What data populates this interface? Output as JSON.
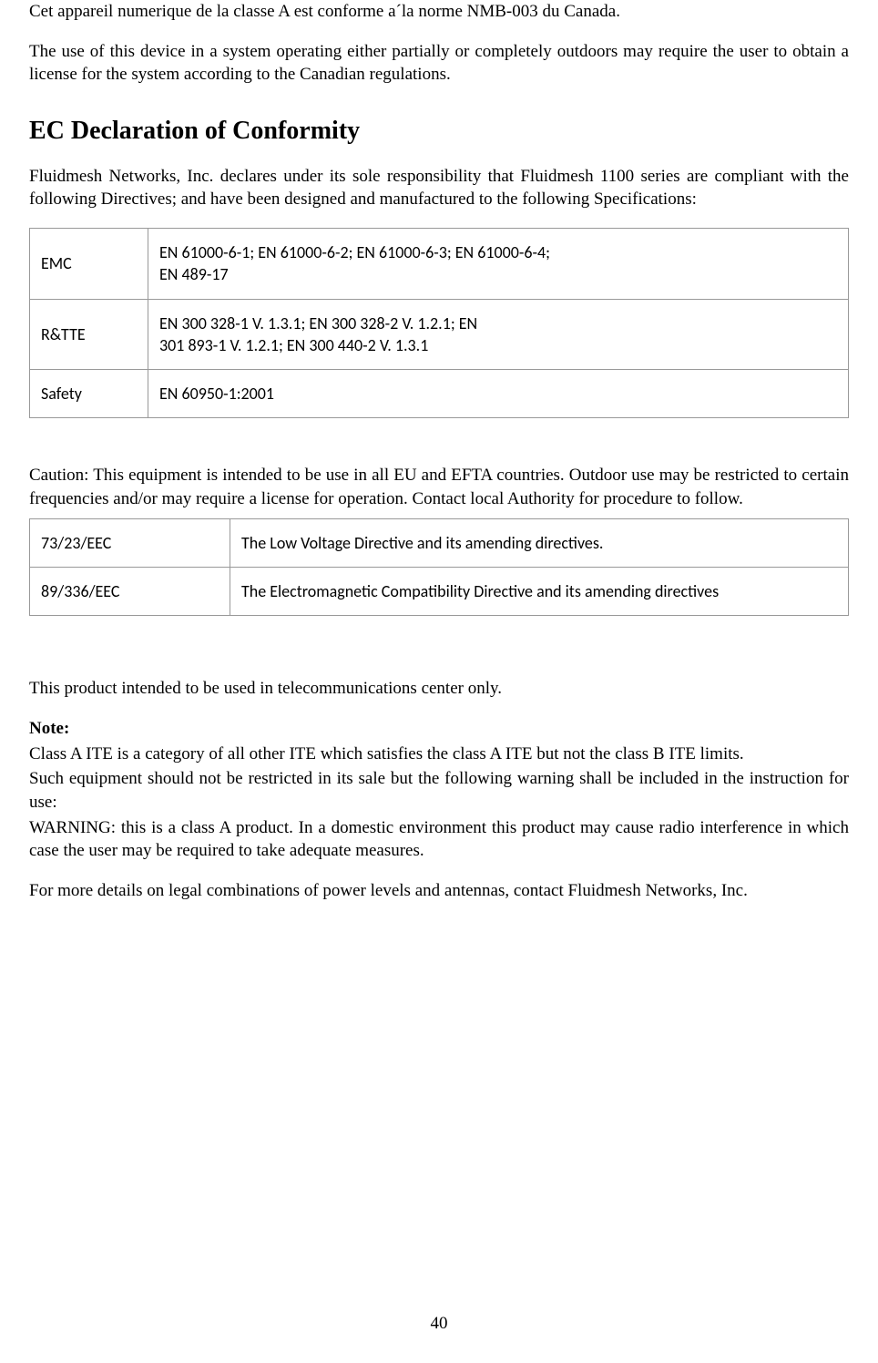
{
  "intro": {
    "line1": "Cet appareil numerique de la classe A est conforme a´la norme NMB-003 du Canada.",
    "line2": "The use of this device in a system operating either partially or completely outdoors may require the user to obtain a license for the system according to the Canadian regulations."
  },
  "ec_section": {
    "title": "EC Declaration of Conformity",
    "intro": "Fluidmesh  Networks,  Inc.  declares  under  its  sole  responsibility  that Fluidmesh  1100  series  are compliant   with  the  following  Directives;  and  have   been   designed   and   manufactured   to   the following Specifications:"
  },
  "table1": {
    "rows": [
      {
        "label": "EMC",
        "value": "EN 61000-6-1;  EN 61000-6-2;  EN 61000-6-3; EN 61000-6-4;\nEN 489-17"
      },
      {
        "label": "R&TTE",
        "value": "EN 300 328-1 V. 1.3.1; EN 300 328-2 V. 1.2.1; EN\n301 893-1 V. 1.2.1; EN 300 440-2 V. 1.3.1"
      },
      {
        "label": "Safety",
        "value": "EN 60950-1:2001"
      }
    ]
  },
  "caution": "Caution:  This equipment is intended to be use in all EU and  EFTA  countries. Outdoor  use  may  be  restricted   to   certain  frequencies   and/or   may   require   a   license   for   operation.  Contact   local Authority for procedure to follow.",
  "table2": {
    "rows": [
      {
        "label": "73/23/EEC",
        "value": "The Low Voltage Directive and its amending directives."
      },
      {
        "label": "89/336/EEC",
        "value": "The   Electromagnetic   Compatibility   Directive and its amending directives"
      }
    ]
  },
  "footer": {
    "telecom": "This product intended to be used in telecommunications center only.",
    "note_label": "Note:",
    "note1": "Class A ITE is a category of all other ITE which satisfies the class A ITE but not the class B ITE limits.",
    "note2": "Such equipment should not be restricted in its sale but the following warning shall be included in the instruction for use:",
    "warning": " WARNING:  this  is  a  class  A  product.  In  a  domestic  environment  this  product  may  cause  radio interference in which case the user may be required to take adequate measures.",
    "details": "For more details on legal combinations of power levels and antennas, contact Fluidmesh Networks, Inc."
  },
  "page_number": "40"
}
